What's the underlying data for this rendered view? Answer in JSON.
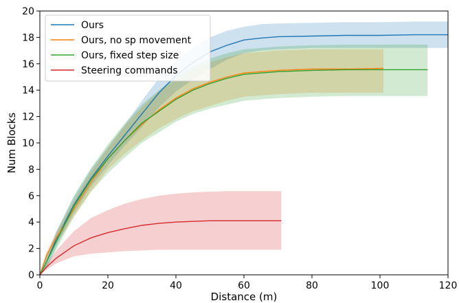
{
  "chart_data": {
    "type": "line",
    "title": "",
    "xlabel": "Distance (m)",
    "ylabel": "Num Blocks",
    "xlim": [
      0,
      120
    ],
    "ylim": [
      0,
      20
    ],
    "xticks": [
      0,
      20,
      40,
      60,
      80,
      100,
      120
    ],
    "yticks": [
      0,
      2,
      4,
      6,
      8,
      10,
      12,
      14,
      16,
      18,
      20
    ],
    "grid": false,
    "legend": "top-left",
    "series": [
      {
        "name": "Ours",
        "color": "#1f77b4",
        "x": [
          0,
          2,
          5,
          10,
          15,
          20,
          25,
          30,
          35,
          40,
          45,
          50,
          55,
          60,
          65,
          70,
          80,
          90,
          100,
          110,
          120
        ],
        "y": [
          0,
          1.0,
          2.8,
          5.3,
          7.3,
          9.0,
          10.6,
          12.2,
          13.8,
          15.1,
          16.1,
          16.9,
          17.4,
          17.8,
          17.95,
          18.05,
          18.1,
          18.15,
          18.15,
          18.2,
          18.2
        ],
        "lower": [
          0,
          0.5,
          2.2,
          4.7,
          6.7,
          8.3,
          9.8,
          11.2,
          12.7,
          13.9,
          14.8,
          15.6,
          16.3,
          16.8,
          17.0,
          17.1,
          17.2,
          17.2,
          17.2,
          17.2,
          17.2
        ],
        "upper": [
          0,
          1.5,
          3.4,
          5.9,
          8.0,
          9.7,
          11.4,
          13.2,
          14.9,
          16.2,
          17.2,
          18.0,
          18.5,
          18.8,
          19.0,
          19.05,
          19.1,
          19.15,
          19.15,
          19.2,
          19.2
        ]
      },
      {
        "name": "Ours, no sp movement",
        "color": "#ff7f0e",
        "x": [
          0,
          2,
          5,
          7,
          10,
          15,
          20,
          25,
          30,
          35,
          40,
          45,
          50,
          55,
          60,
          70,
          80,
          90,
          101
        ],
        "y": [
          0,
          1.5,
          2.9,
          3.7,
          5.0,
          7.0,
          8.8,
          10.2,
          11.4,
          12.5,
          13.4,
          14.1,
          14.6,
          15.0,
          15.3,
          15.5,
          15.6,
          15.6,
          15.65
        ],
        "lower": [
          0,
          1.2,
          2.5,
          3.2,
          4.4,
          6.3,
          8.0,
          9.2,
          10.2,
          11.1,
          11.8,
          12.4,
          12.8,
          13.2,
          13.5,
          13.7,
          13.8,
          13.8,
          13.8
        ],
        "upper": [
          0,
          1.8,
          3.3,
          4.2,
          5.6,
          7.8,
          9.6,
          11.3,
          12.7,
          13.9,
          14.8,
          15.5,
          16.1,
          16.5,
          16.8,
          17.0,
          17.1,
          17.1,
          17.1
        ]
      },
      {
        "name": "Ours, fixed step size",
        "color": "#2ca02c",
        "x": [
          0,
          2,
          5,
          10,
          15,
          20,
          25,
          30,
          35,
          40,
          45,
          50,
          55,
          60,
          70,
          80,
          90,
          100,
          114
        ],
        "y": [
          0,
          1.0,
          2.6,
          5.2,
          7.2,
          8.8,
          10.2,
          11.5,
          12.4,
          13.3,
          14.0,
          14.5,
          14.9,
          15.2,
          15.4,
          15.5,
          15.55,
          15.55,
          15.55
        ],
        "lower": [
          0,
          0.6,
          2.0,
          4.4,
          6.3,
          7.7,
          8.9,
          10.0,
          10.8,
          11.6,
          12.2,
          12.6,
          12.9,
          13.2,
          13.4,
          13.5,
          13.55,
          13.55,
          13.55
        ],
        "upper": [
          0,
          1.4,
          3.3,
          6.0,
          8.1,
          9.9,
          11.5,
          12.9,
          14.0,
          15.0,
          15.8,
          16.4,
          16.8,
          17.1,
          17.3,
          17.4,
          17.45,
          17.45,
          17.45
        ]
      },
      {
        "name": "Steering commands",
        "color": "#d62728",
        "x": [
          0,
          2,
          5,
          10,
          15,
          20,
          25,
          30,
          35,
          40,
          45,
          50,
          55,
          60,
          65,
          71
        ],
        "y": [
          0,
          0.6,
          1.3,
          2.2,
          2.8,
          3.2,
          3.5,
          3.75,
          3.9,
          4.0,
          4.05,
          4.1,
          4.1,
          4.1,
          4.1,
          4.1
        ],
        "lower": [
          0,
          0.4,
          0.9,
          1.4,
          1.6,
          1.7,
          1.8,
          1.85,
          1.9,
          1.9,
          1.9,
          1.9,
          1.9,
          1.9,
          1.9,
          1.9
        ],
        "upper": [
          0,
          0.8,
          1.9,
          3.3,
          4.3,
          4.9,
          5.4,
          5.75,
          6.0,
          6.15,
          6.25,
          6.3,
          6.35,
          6.35,
          6.35,
          6.35
        ]
      }
    ]
  }
}
